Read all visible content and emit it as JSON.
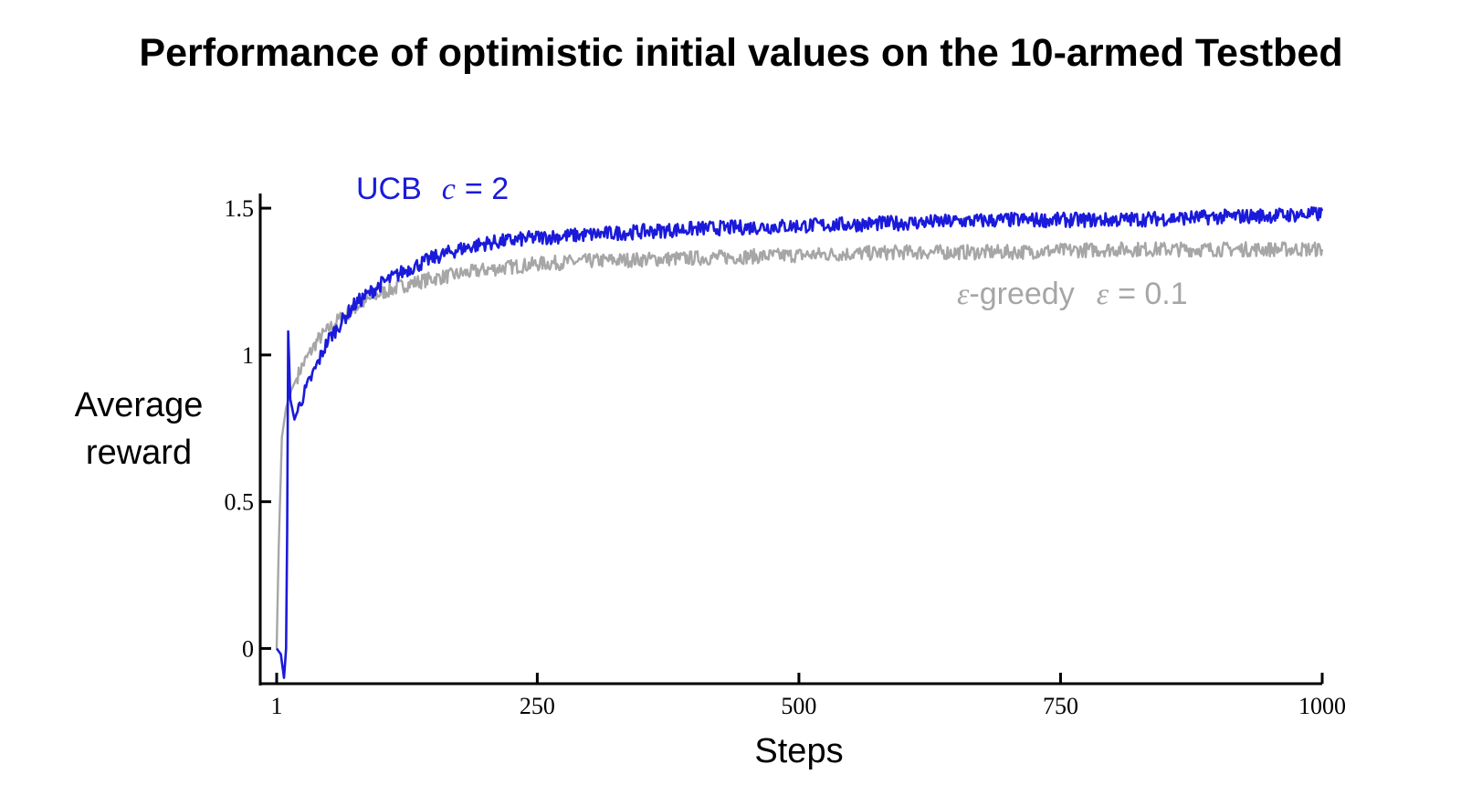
{
  "chart_data": {
    "type": "line",
    "title": "Performance of optimistic initial values on the 10-armed Testbed",
    "xlabel": "Steps",
    "ylabel_lines": [
      "Average",
      "reward"
    ],
    "xlim": [
      1,
      1000
    ],
    "ylim": [
      -0.12,
      1.55
    ],
    "xticks": [
      {
        "value": 1,
        "label": "1"
      },
      {
        "value": 250,
        "label": "250"
      },
      {
        "value": 500,
        "label": "500"
      },
      {
        "value": 750,
        "label": "750"
      },
      {
        "value": 1000,
        "label": "1000"
      }
    ],
    "yticks": [
      {
        "value": 0,
        "label": "0"
      },
      {
        "value": 0.5,
        "label": "0.5"
      },
      {
        "value": 1,
        "label": "1"
      },
      {
        "value": 1.5,
        "label": "1.5"
      }
    ],
    "grid": false,
    "series": [
      {
        "name_parts": [
          "UCB",
          "c",
          "= 2"
        ],
        "color": "#1a1adb",
        "points": [
          [
            1,
            0.0
          ],
          [
            5,
            -0.02
          ],
          [
            8,
            -0.1
          ],
          [
            10,
            0.0
          ],
          [
            11,
            0.4
          ],
          [
            12,
            1.08
          ],
          [
            14,
            0.85
          ],
          [
            18,
            0.78
          ],
          [
            25,
            0.85
          ],
          [
            35,
            0.93
          ],
          [
            50,
            1.05
          ],
          [
            75,
            1.17
          ],
          [
            100,
            1.24
          ],
          [
            125,
            1.29
          ],
          [
            150,
            1.33
          ],
          [
            175,
            1.36
          ],
          [
            200,
            1.38
          ],
          [
            250,
            1.4
          ],
          [
            300,
            1.41
          ],
          [
            400,
            1.43
          ],
          [
            500,
            1.44
          ],
          [
            600,
            1.45
          ],
          [
            700,
            1.46
          ],
          [
            800,
            1.46
          ],
          [
            900,
            1.47
          ],
          [
            1000,
            1.48
          ]
        ]
      },
      {
        "name_parts": [
          "ε",
          "-greedy",
          "ε",
          "= 0.1"
        ],
        "color": "#a6a6a6",
        "points": [
          [
            1,
            0.0
          ],
          [
            3,
            0.35
          ],
          [
            6,
            0.72
          ],
          [
            10,
            0.82
          ],
          [
            15,
            0.88
          ],
          [
            25,
            0.96
          ],
          [
            40,
            1.05
          ],
          [
            60,
            1.12
          ],
          [
            80,
            1.17
          ],
          [
            100,
            1.21
          ],
          [
            125,
            1.24
          ],
          [
            150,
            1.26
          ],
          [
            200,
            1.29
          ],
          [
            250,
            1.31
          ],
          [
            300,
            1.32
          ],
          [
            400,
            1.33
          ],
          [
            500,
            1.34
          ],
          [
            600,
            1.35
          ],
          [
            700,
            1.35
          ],
          [
            800,
            1.36
          ],
          [
            900,
            1.36
          ],
          [
            1000,
            1.36
          ]
        ]
      }
    ]
  }
}
